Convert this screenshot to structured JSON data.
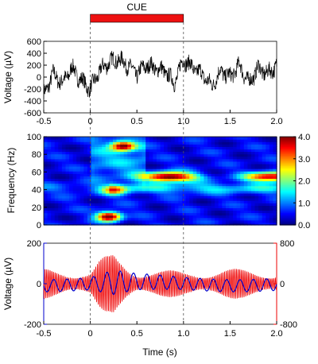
{
  "chart_data": [
    {
      "type": "line",
      "panel": "raw-lfp",
      "xlim": [
        -0.5,
        2.0
      ],
      "ylim": [
        -600,
        600
      ],
      "ylabel": "Voltage (µV)",
      "yticks": [
        "600",
        "400",
        "200",
        "0",
        "-200",
        "-400",
        "-600"
      ],
      "xticks": [
        "-0.5",
        "0",
        "0.5",
        "1.0",
        "1.5",
        "2.0"
      ],
      "cue": {
        "label": "CUE",
        "start": 0.0,
        "end": 1.0,
        "color": "#ee1111"
      },
      "series": [
        {
          "color": "#000000",
          "x": [
            -0.5,
            -0.4,
            -0.3,
            -0.2,
            -0.1,
            0.0,
            0.1,
            0.2,
            0.3,
            0.4,
            0.5,
            0.6,
            0.7,
            0.8,
            0.9,
            1.0,
            1.1,
            1.2,
            1.3,
            1.4,
            1.5,
            1.6,
            1.7,
            1.8,
            1.9,
            2.0
          ],
          "y": [
            -300,
            50,
            -100,
            150,
            -50,
            -200,
            100,
            250,
            300,
            200,
            50,
            200,
            150,
            100,
            -100,
            300,
            150,
            50,
            -150,
            100,
            0,
            200,
            -100,
            150,
            50,
            200
          ]
        }
      ]
    },
    {
      "type": "heatmap",
      "panel": "spectrogram",
      "xlim": [
        -0.5,
        2.0
      ],
      "ylim": [
        0,
        100
      ],
      "ylabel": "Frequency (Hz)",
      "yticks": [
        "100",
        "80",
        "60",
        "40",
        "20",
        "0"
      ],
      "colorbar": {
        "min": 0.0,
        "max": 4.0,
        "ticks": [
          "4.0",
          "3.0",
          "2.0",
          "1.0",
          "0.0"
        ]
      },
      "hotspots": [
        {
          "t": 0.35,
          "f": 90,
          "value": 3.5
        },
        {
          "t": 0.2,
          "f": 10,
          "value": 4.0
        },
        {
          "t": 0.85,
          "f": 55,
          "value": 4.0
        },
        {
          "t": 1.95,
          "f": 55,
          "value": 3.5
        },
        {
          "t": 0.25,
          "f": 40,
          "value": 2.0
        }
      ]
    },
    {
      "type": "line",
      "panel": "filtered",
      "xlim": [
        -0.5,
        2.0
      ],
      "xlabel": "Time (s)",
      "xticks": [
        "-0.5",
        "0",
        "0.5",
        "1.0",
        "1.5",
        "2.0"
      ],
      "ylabel": "Voltage (µV)",
      "ylim_left": [
        -200,
        200
      ],
      "yticks_left": [
        "200",
        "0",
        "-200"
      ],
      "ylim_right": [
        -800,
        800
      ],
      "yticks_right": [
        "800",
        "0",
        "-800"
      ],
      "series": [
        {
          "color": "#ee0000",
          "axis": "right",
          "x": [
            -0.5,
            0.0,
            0.1,
            0.25,
            0.5,
            1.0,
            1.5,
            2.0
          ],
          "amplitude": [
            300,
            250,
            500,
            600,
            300,
            250,
            300,
            250
          ]
        },
        {
          "color": "#0000cc",
          "axis": "left",
          "x": [
            -0.5,
            0.0,
            0.25,
            0.5,
            1.0,
            1.5,
            2.0
          ],
          "amplitude": [
            30,
            30,
            60,
            40,
            30,
            30,
            30
          ]
        }
      ]
    }
  ],
  "colors": {
    "raw": "#000000",
    "bandpass": "#ee0000",
    "lowfreq": "#0000cc",
    "cue_bar": "#ee1111",
    "dashed": "#555555"
  }
}
